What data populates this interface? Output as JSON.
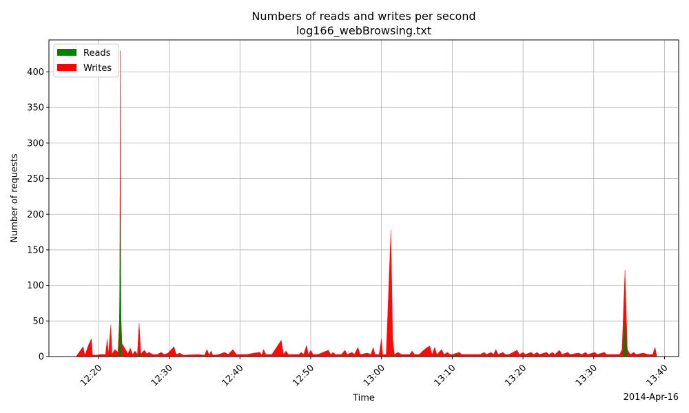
{
  "chart_data": {
    "type": "area",
    "title": "Numbers of reads and writes per second",
    "subtitle": "log166_webBrowsing.txt",
    "xlabel": "Time",
    "ylabel": "Number of requests",
    "x_date_label": "2014-Apr-16",
    "xlim": [
      "12:13",
      "13:42"
    ],
    "ylim": [
      0,
      445
    ],
    "x_ticks": [
      "12:20",
      "12:30",
      "12:40",
      "12:50",
      "13:00",
      "13:10",
      "13:20",
      "13:30",
      "13:40"
    ],
    "y_ticks": [
      0,
      50,
      100,
      150,
      200,
      250,
      300,
      350,
      400
    ],
    "grid": true,
    "legend_position": "top-left",
    "series": [
      {
        "name": "Reads",
        "color": "#008000",
        "points": [
          [
            "12:17:00",
            0
          ],
          [
            "12:21:10",
            0
          ],
          [
            "12:21:40",
            3
          ],
          [
            "12:22:00",
            0
          ],
          [
            "12:22:55",
            0
          ],
          [
            "12:23:05",
            195
          ],
          [
            "12:23:15",
            0
          ],
          [
            "12:25:35",
            0
          ],
          [
            "12:25:45",
            6
          ],
          [
            "12:25:55",
            0
          ],
          [
            "12:49:20",
            0
          ],
          [
            "12:49:30",
            3
          ],
          [
            "12:49:40",
            0
          ],
          [
            "13:01:20",
            0
          ],
          [
            "13:01:30",
            4
          ],
          [
            "13:01:40",
            0
          ],
          [
            "13:09:50",
            0
          ],
          [
            "13:10:20",
            3
          ],
          [
            "13:10:50",
            0
          ],
          [
            "13:34:10",
            0
          ],
          [
            "13:34:25",
            50
          ],
          [
            "13:34:40",
            0
          ],
          [
            "13:39:00",
            0
          ]
        ]
      },
      {
        "name": "Writes",
        "color": "#ff0000",
        "points": [
          [
            "12:16:50",
            0
          ],
          [
            "12:17:50",
            14
          ],
          [
            "12:18:05",
            2
          ],
          [
            "12:18:40",
            18
          ],
          [
            "12:19:00",
            25
          ],
          [
            "12:19:10",
            2
          ],
          [
            "12:19:40",
            2
          ],
          [
            "12:20:20",
            3
          ],
          [
            "12:21:00",
            3
          ],
          [
            "12:21:15",
            25
          ],
          [
            "12:21:25",
            3
          ],
          [
            "12:21:45",
            45
          ],
          [
            "12:21:55",
            4
          ],
          [
            "12:22:20",
            10
          ],
          [
            "12:22:45",
            6
          ],
          [
            "12:23:00",
            60
          ],
          [
            "12:23:05",
            430
          ],
          [
            "12:23:10",
            60
          ],
          [
            "12:23:20",
            18
          ],
          [
            "12:23:50",
            10
          ],
          [
            "12:24:10",
            4
          ],
          [
            "12:24:30",
            12
          ],
          [
            "12:24:50",
            3
          ],
          [
            "12:25:10",
            8
          ],
          [
            "12:25:30",
            3
          ],
          [
            "12:25:45",
            47
          ],
          [
            "12:26:00",
            4
          ],
          [
            "12:26:30",
            9
          ],
          [
            "12:26:50",
            4
          ],
          [
            "12:27:10",
            6
          ],
          [
            "12:27:40",
            3
          ],
          [
            "12:28:20",
            3
          ],
          [
            "12:28:50",
            6
          ],
          [
            "12:29:20",
            3
          ],
          [
            "12:29:50",
            5
          ],
          [
            "12:30:40",
            14
          ],
          [
            "12:31:00",
            3
          ],
          [
            "12:31:30",
            5
          ],
          [
            "12:32:00",
            2
          ],
          [
            "12:34:00",
            3
          ],
          [
            "12:35:00",
            2
          ],
          [
            "12:35:20",
            10
          ],
          [
            "12:35:40",
            2
          ],
          [
            "12:35:55",
            8
          ],
          [
            "12:36:10",
            2
          ],
          [
            "12:37:00",
            3
          ],
          [
            "12:37:50",
            6
          ],
          [
            "12:38:20",
            3
          ],
          [
            "12:39:00",
            10
          ],
          [
            "12:39:30",
            3
          ],
          [
            "12:40:00",
            3
          ],
          [
            "12:41:00",
            3
          ],
          [
            "12:42:00",
            5
          ],
          [
            "12:42:50",
            6
          ],
          [
            "12:43:05",
            2
          ],
          [
            "12:43:20",
            10
          ],
          [
            "12:43:40",
            3
          ],
          [
            "12:44:30",
            3
          ],
          [
            "12:45:50",
            23
          ],
          [
            "12:46:10",
            3
          ],
          [
            "12:46:30",
            8
          ],
          [
            "12:46:50",
            3
          ],
          [
            "12:47:40",
            3
          ],
          [
            "12:48:20",
            3
          ],
          [
            "12:48:40",
            6
          ],
          [
            "12:49:00",
            3
          ],
          [
            "12:49:25",
            16
          ],
          [
            "12:49:40",
            3
          ],
          [
            "12:50:00",
            9
          ],
          [
            "12:50:20",
            3
          ],
          [
            "12:51:00",
            3
          ],
          [
            "12:52:30",
            9
          ],
          [
            "12:52:50",
            3
          ],
          [
            "12:53:10",
            6
          ],
          [
            "12:53:30",
            3
          ],
          [
            "12:54:20",
            3
          ],
          [
            "12:54:50",
            9
          ],
          [
            "12:55:10",
            3
          ],
          [
            "12:55:50",
            6
          ],
          [
            "12:56:10",
            3
          ],
          [
            "12:56:40",
            13
          ],
          [
            "12:57:00",
            3
          ],
          [
            "12:58:00",
            5
          ],
          [
            "12:58:30",
            3
          ],
          [
            "12:58:50",
            13
          ],
          [
            "12:59:05",
            3
          ],
          [
            "12:59:40",
            3
          ],
          [
            "13:00:00",
            25
          ],
          [
            "13:00:10",
            3
          ],
          [
            "13:00:40",
            3
          ],
          [
            "13:01:20",
            178
          ],
          [
            "13:01:35",
            25
          ],
          [
            "13:01:50",
            3
          ],
          [
            "13:02:20",
            6
          ],
          [
            "13:02:50",
            3
          ],
          [
            "13:04:00",
            3
          ],
          [
            "13:04:20",
            8
          ],
          [
            "13:04:40",
            3
          ],
          [
            "13:05:20",
            3
          ],
          [
            "13:05:50",
            8
          ],
          [
            "13:06:20",
            12
          ],
          [
            "13:06:50",
            15
          ],
          [
            "13:07:10",
            3
          ],
          [
            "13:07:30",
            13
          ],
          [
            "13:07:50",
            3
          ],
          [
            "13:08:30",
            10
          ],
          [
            "13:08:50",
            3
          ],
          [
            "13:09:20",
            6
          ],
          [
            "13:09:40",
            3
          ],
          [
            "13:10:00",
            3
          ],
          [
            "13:11:00",
            6
          ],
          [
            "13:11:20",
            3
          ],
          [
            "13:12:00",
            3
          ],
          [
            "13:14:00",
            3
          ],
          [
            "13:14:30",
            6
          ],
          [
            "13:14:50",
            3
          ],
          [
            "13:15:30",
            6
          ],
          [
            "13:15:50",
            3
          ],
          [
            "13:16:10",
            10
          ],
          [
            "13:16:30",
            3
          ],
          [
            "13:17:10",
            6
          ],
          [
            "13:17:30",
            3
          ],
          [
            "13:18:00",
            3
          ],
          [
            "13:19:10",
            9
          ],
          [
            "13:19:30",
            3
          ],
          [
            "13:20:00",
            6
          ],
          [
            "13:20:20",
            3
          ],
          [
            "13:21:10",
            6
          ],
          [
            "13:21:30",
            3
          ],
          [
            "13:22:00",
            6
          ],
          [
            "13:22:20",
            3
          ],
          [
            "13:23:20",
            6
          ],
          [
            "13:23:40",
            3
          ],
          [
            "13:24:10",
            6
          ],
          [
            "13:24:30",
            3
          ],
          [
            "13:25:10",
            9
          ],
          [
            "13:25:30",
            3
          ],
          [
            "13:26:20",
            6
          ],
          [
            "13:26:40",
            3
          ],
          [
            "13:27:50",
            5
          ],
          [
            "13:28:20",
            3
          ],
          [
            "13:28:50",
            6
          ],
          [
            "13:29:10",
            3
          ],
          [
            "13:30:10",
            6
          ],
          [
            "13:30:30",
            3
          ],
          [
            "13:31:30",
            6
          ],
          [
            "13:31:50",
            3
          ],
          [
            "13:32:20",
            3
          ],
          [
            "13:33:00",
            3
          ],
          [
            "13:33:40",
            3
          ],
          [
            "13:34:00",
            10
          ],
          [
            "13:34:25",
            122
          ],
          [
            "13:34:45",
            10
          ],
          [
            "13:35:10",
            3
          ],
          [
            "13:35:40",
            6
          ],
          [
            "13:36:00",
            3
          ],
          [
            "13:37:00",
            5
          ],
          [
            "13:37:40",
            3
          ],
          [
            "13:38:20",
            3
          ],
          [
            "13:38:40",
            13
          ],
          [
            "13:38:55",
            0
          ]
        ]
      }
    ]
  }
}
